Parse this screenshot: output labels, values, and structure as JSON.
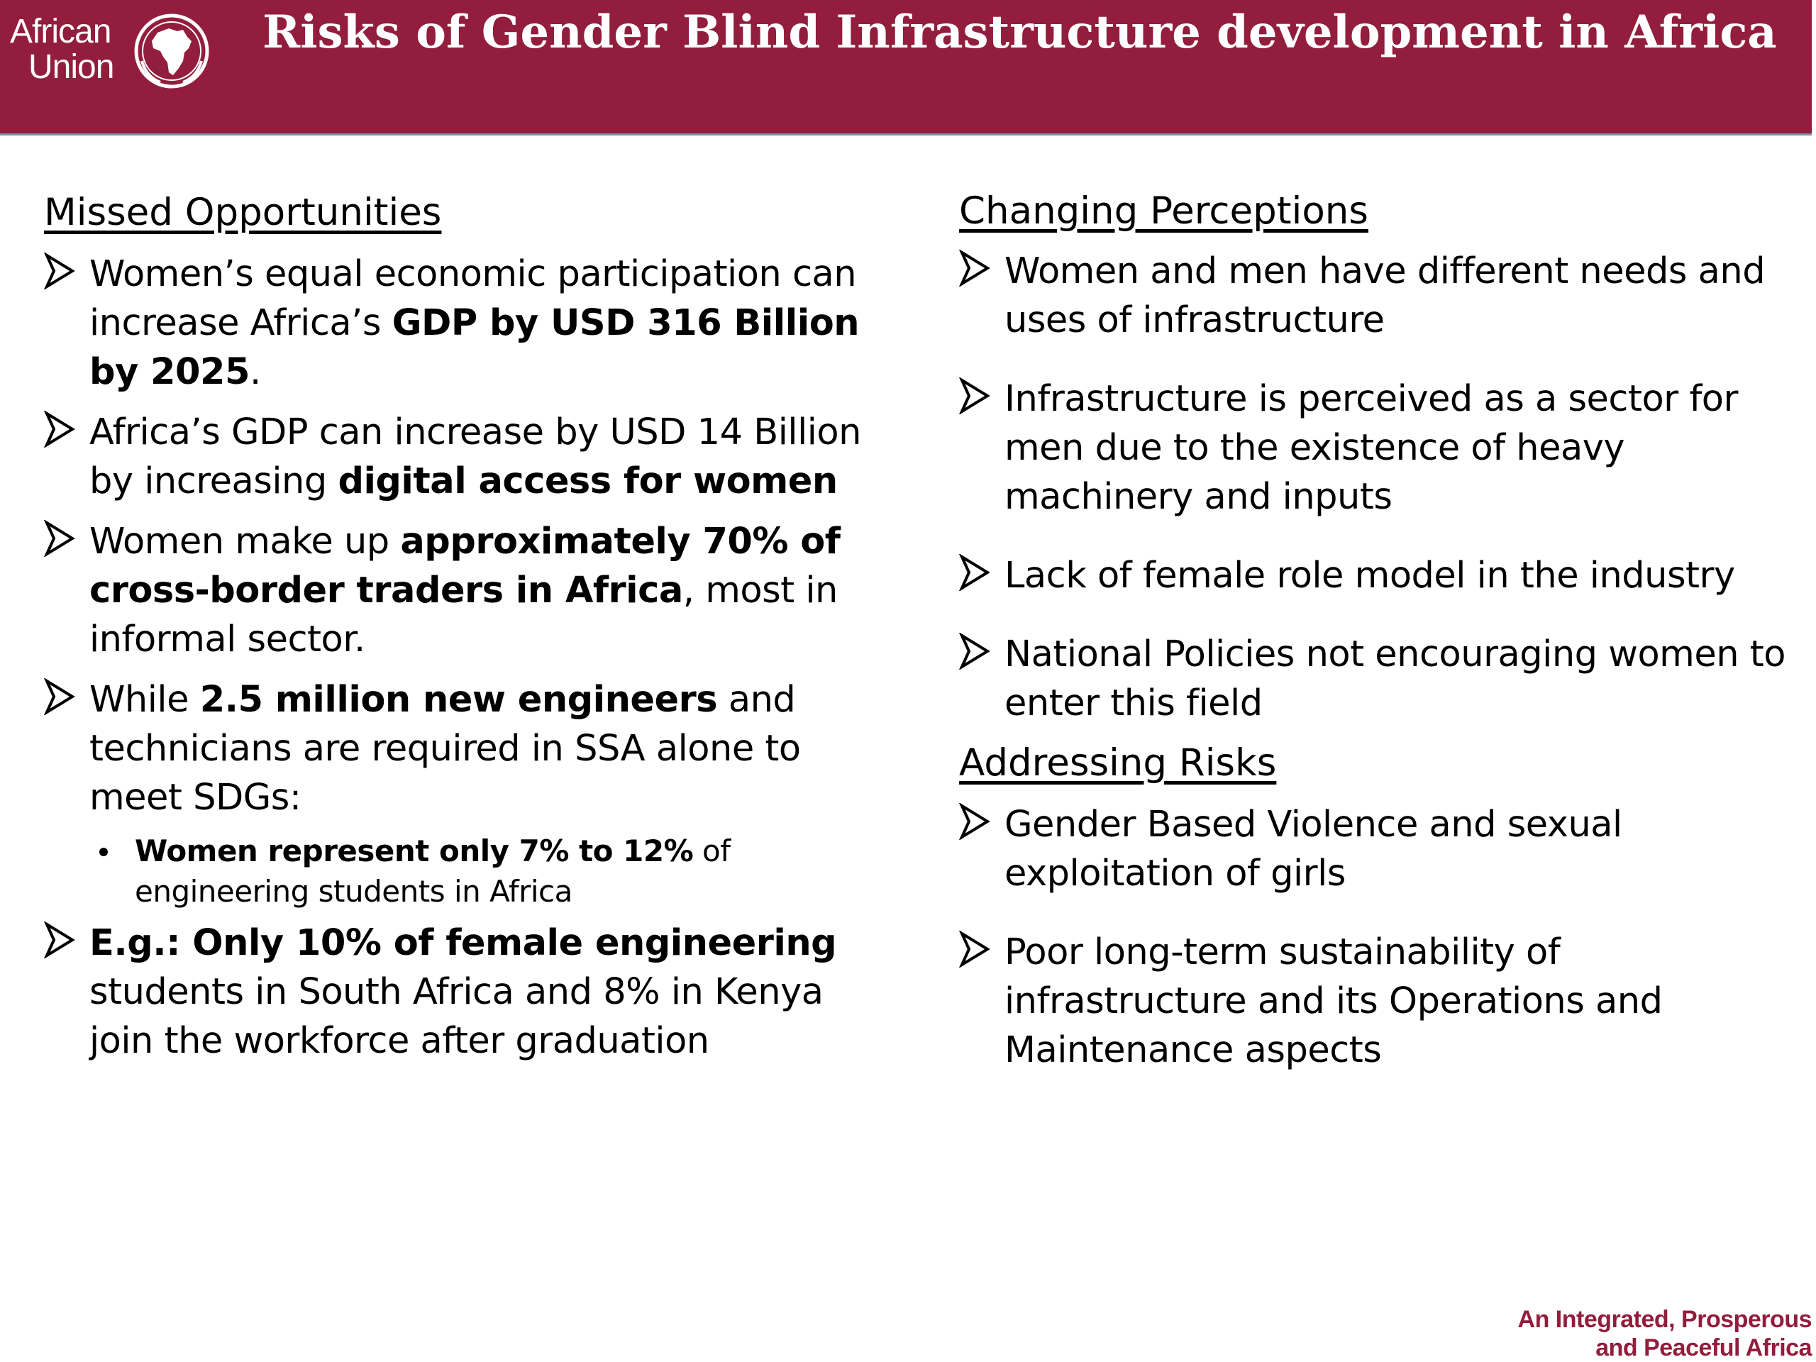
{
  "header": {
    "logo_text_line1": "African",
    "logo_text_line2": "Union",
    "logo_icon": "africa-globe-icon",
    "title": "Risks of Gender Blind Infrastructure development in Africa"
  },
  "left_column": {
    "heading": "Missed Opportunities",
    "items": [
      {
        "parts": [
          "Women’s equal economic participation can increase Africa’s ",
          "GDP by USD 316 Billion by 2025",
          "."
        ]
      },
      {
        "parts": [
          "Africa’s GDP can increase by USD 14 Billion by increasing ",
          "digital access for women"
        ]
      },
      {
        "parts": [
          "Women make up ",
          "approximately 70% of cross-border traders in Africa",
          ", most in informal sector."
        ]
      },
      {
        "parts": [
          "While ",
          "2.5 million new engineers",
          " and technicians are required in SSA alone to meet SDGs:"
        ],
        "sub": {
          "parts": [
            "Women represent only 7% to 12%",
            " of engineering students in Africa"
          ]
        }
      },
      {
        "parts": [
          "E.g.: Only 10% of female engineering",
          " students in South Africa and 8% in Kenya join the workforce after graduation"
        ]
      }
    ]
  },
  "right_column": {
    "heading_1": "Changing Perceptions",
    "items_1": [
      "Women and men have different needs and uses of infrastructure",
      "Infrastructure is perceived as a sector for men due to the existence of heavy machinery and inputs",
      "Lack of female role model in the industry",
      "National Policies not encouraging women to enter this field"
    ],
    "heading_2": "Addressing Risks",
    "items_2": [
      "Gender Based Violence and sexual exploitation of girls",
      "Poor long-term sustainability of infrastructure and its Operations and Maintenance aspects"
    ]
  },
  "footer": {
    "tagline_line1": "An Integrated, Prosperous",
    "tagline_line2": "and Peaceful Africa"
  },
  "colors": {
    "header_bg": "#921d3c",
    "tagline": "#921d3c"
  }
}
